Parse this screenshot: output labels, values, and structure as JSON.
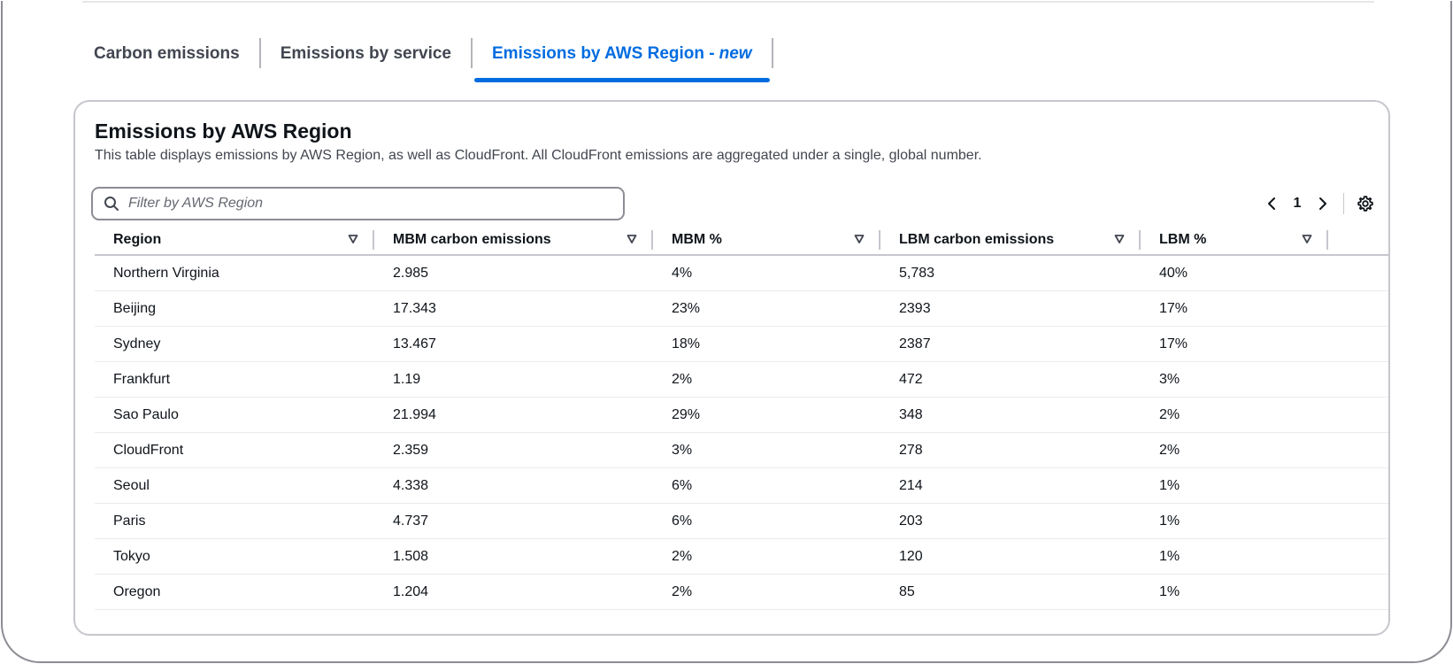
{
  "tabs": [
    {
      "label": "Carbon emissions",
      "suffix": "",
      "active": false
    },
    {
      "label": "Emissions by service",
      "suffix": "",
      "active": false
    },
    {
      "label": "Emissions by AWS Region -",
      "suffix": "new",
      "active": true
    }
  ],
  "card": {
    "title": "Emissions by AWS Region",
    "description": "This table displays emissions by AWS Region, as well as CloudFront. All CloudFront emissions are aggregated under a single, global number."
  },
  "filter": {
    "placeholder": "Filter by AWS Region",
    "value": ""
  },
  "pagination": {
    "current_page": "1"
  },
  "icons": {
    "search": "search-icon",
    "prev": "chevron-left-icon",
    "next": "chevron-right-icon",
    "settings": "gear-icon",
    "sort": "caret-down-icon"
  },
  "colors": {
    "accent": "#006ce0",
    "text": "#0f141a",
    "muted": "#424650",
    "border": "#c6c6cd"
  },
  "table": {
    "columns": [
      "Region",
      "MBM carbon emissions",
      "MBM %",
      "LBM carbon emissions",
      "LBM %"
    ],
    "rows": [
      [
        "Northern Virginia",
        "2.985",
        "4%",
        "5,783",
        "40%"
      ],
      [
        "Beijing",
        "17.343",
        "23%",
        "2393",
        "17%"
      ],
      [
        "Sydney",
        "13.467",
        "18%",
        "2387",
        "17%"
      ],
      [
        "Frankfurt",
        "1.19",
        "2%",
        "472",
        "3%"
      ],
      [
        "Sao Paulo",
        "21.994",
        "29%",
        "348",
        "2%"
      ],
      [
        "CloudFront",
        "2.359",
        "3%",
        "278",
        "2%"
      ],
      [
        "Seoul",
        "4.338",
        "6%",
        "214",
        "1%"
      ],
      [
        "Paris",
        "4.737",
        "6%",
        "203",
        "1%"
      ],
      [
        "Tokyo",
        "1.508",
        "2%",
        "120",
        "1%"
      ],
      [
        "Oregon",
        "1.204",
        "2%",
        "85",
        "1%"
      ]
    ]
  }
}
